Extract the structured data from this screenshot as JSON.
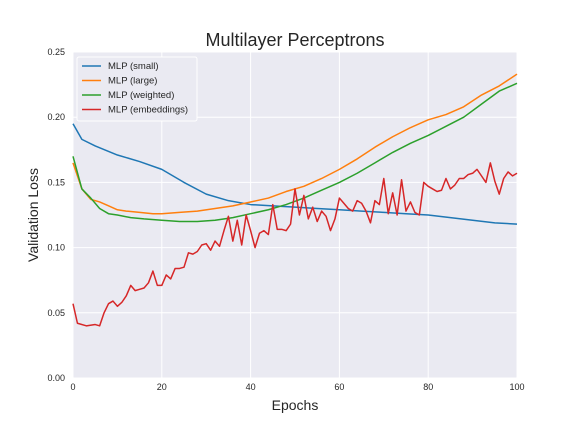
{
  "chart_data": {
    "type": "line",
    "title": "Multilayer Perceptrons",
    "xlabel": "Epochs",
    "ylabel": "Validation Loss",
    "xlim": [
      0,
      100
    ],
    "ylim": [
      0.0,
      0.25
    ],
    "xticks": [
      0,
      20,
      40,
      60,
      80,
      100
    ],
    "yticks": [
      0.0,
      0.05,
      0.1,
      0.15,
      0.2,
      0.25
    ],
    "xtick_labels": [
      "0",
      "20",
      "40",
      "60",
      "80",
      "100"
    ],
    "ytick_labels": [
      "0.00",
      "0.05",
      "0.10",
      "0.15",
      "0.20",
      "0.25"
    ],
    "grid": true,
    "legend_position": "top-left",
    "series": [
      {
        "name": "MLP (small)",
        "color": "#1f77b4",
        "points": [
          [
            0,
            0.195
          ],
          [
            2,
            0.183
          ],
          [
            5,
            0.178
          ],
          [
            10,
            0.171
          ],
          [
            15,
            0.166
          ],
          [
            20,
            0.16
          ],
          [
            25,
            0.15
          ],
          [
            30,
            0.141
          ],
          [
            35,
            0.136
          ],
          [
            40,
            0.133
          ],
          [
            45,
            0.132
          ],
          [
            50,
            0.131
          ],
          [
            55,
            0.13
          ],
          [
            60,
            0.129
          ],
          [
            65,
            0.128
          ],
          [
            70,
            0.127
          ],
          [
            75,
            0.126
          ],
          [
            80,
            0.125
          ],
          [
            85,
            0.123
          ],
          [
            90,
            0.121
          ],
          [
            95,
            0.119
          ],
          [
            100,
            0.118
          ]
        ]
      },
      {
        "name": "MLP (large)",
        "color": "#ff7f0e",
        "points": [
          [
            0,
            0.165
          ],
          [
            2,
            0.145
          ],
          [
            4,
            0.137
          ],
          [
            6,
            0.135
          ],
          [
            8,
            0.132
          ],
          [
            10,
            0.129
          ],
          [
            12,
            0.128
          ],
          [
            15,
            0.127
          ],
          [
            18,
            0.126
          ],
          [
            20,
            0.126
          ],
          [
            24,
            0.127
          ],
          [
            28,
            0.128
          ],
          [
            32,
            0.13
          ],
          [
            36,
            0.132
          ],
          [
            40,
            0.135
          ],
          [
            44,
            0.138
          ],
          [
            48,
            0.143
          ],
          [
            52,
            0.147
          ],
          [
            56,
            0.153
          ],
          [
            60,
            0.16
          ],
          [
            64,
            0.168
          ],
          [
            68,
            0.177
          ],
          [
            72,
            0.185
          ],
          [
            76,
            0.192
          ],
          [
            80,
            0.198
          ],
          [
            84,
            0.202
          ],
          [
            88,
            0.208
          ],
          [
            92,
            0.217
          ],
          [
            96,
            0.224
          ],
          [
            100,
            0.233
          ]
        ]
      },
      {
        "name": "MLP (weighted)",
        "color": "#2ca02c",
        "points": [
          [
            0,
            0.17
          ],
          [
            2,
            0.145
          ],
          [
            4,
            0.138
          ],
          [
            6,
            0.13
          ],
          [
            8,
            0.126
          ],
          [
            10,
            0.125
          ],
          [
            13,
            0.123
          ],
          [
            16,
            0.122
          ],
          [
            20,
            0.121
          ],
          [
            24,
            0.12
          ],
          [
            28,
            0.12
          ],
          [
            32,
            0.121
          ],
          [
            36,
            0.123
          ],
          [
            40,
            0.126
          ],
          [
            44,
            0.129
          ],
          [
            48,
            0.133
          ],
          [
            52,
            0.138
          ],
          [
            56,
            0.144
          ],
          [
            60,
            0.15
          ],
          [
            64,
            0.157
          ],
          [
            68,
            0.165
          ],
          [
            72,
            0.173
          ],
          [
            76,
            0.18
          ],
          [
            80,
            0.186
          ],
          [
            84,
            0.193
          ],
          [
            88,
            0.2
          ],
          [
            92,
            0.21
          ],
          [
            96,
            0.22
          ],
          [
            100,
            0.226
          ]
        ]
      },
      {
        "name": "MLP (embeddings)",
        "color": "#d62728",
        "points": [
          [
            0,
            0.057
          ],
          [
            1,
            0.042
          ],
          [
            3,
            0.04
          ],
          [
            5,
            0.041
          ],
          [
            6,
            0.04
          ],
          [
            7,
            0.05
          ],
          [
            8,
            0.057
          ],
          [
            9,
            0.059
          ],
          [
            10,
            0.055
          ],
          [
            11,
            0.058
          ],
          [
            12,
            0.063
          ],
          [
            13,
            0.071
          ],
          [
            14,
            0.067
          ],
          [
            15,
            0.068
          ],
          [
            16,
            0.069
          ],
          [
            17,
            0.073
          ],
          [
            18,
            0.082
          ],
          [
            19,
            0.071
          ],
          [
            20,
            0.071
          ],
          [
            21,
            0.079
          ],
          [
            22,
            0.076
          ],
          [
            23,
            0.084
          ],
          [
            24,
            0.084
          ],
          [
            25,
            0.085
          ],
          [
            26,
            0.096
          ],
          [
            27,
            0.095
          ],
          [
            28,
            0.097
          ],
          [
            29,
            0.102
          ],
          [
            30,
            0.103
          ],
          [
            31,
            0.098
          ],
          [
            32,
            0.105
          ],
          [
            33,
            0.101
          ],
          [
            34,
            0.113
          ],
          [
            35,
            0.124
          ],
          [
            36,
            0.105
          ],
          [
            37,
            0.121
          ],
          [
            38,
            0.102
          ],
          [
            39,
            0.125
          ],
          [
            40,
            0.113
          ],
          [
            41,
            0.1
          ],
          [
            42,
            0.111
          ],
          [
            43,
            0.113
          ],
          [
            44,
            0.11
          ],
          [
            45,
            0.133
          ],
          [
            46,
            0.114
          ],
          [
            47,
            0.114
          ],
          [
            48,
            0.113
          ],
          [
            49,
            0.118
          ],
          [
            50,
            0.145
          ],
          [
            51,
            0.125
          ],
          [
            52,
            0.14
          ],
          [
            53,
            0.122
          ],
          [
            54,
            0.131
          ],
          [
            55,
            0.12
          ],
          [
            56,
            0.128
          ],
          [
            57,
            0.124
          ],
          [
            58,
            0.113
          ],
          [
            59,
            0.122
          ],
          [
            60,
            0.138
          ],
          [
            61,
            0.134
          ],
          [
            62,
            0.13
          ],
          [
            63,
            0.128
          ],
          [
            64,
            0.136
          ],
          [
            65,
            0.134
          ],
          [
            66,
            0.128
          ],
          [
            67,
            0.119
          ],
          [
            68,
            0.136
          ],
          [
            69,
            0.133
          ],
          [
            70,
            0.153
          ],
          [
            71,
            0.126
          ],
          [
            72,
            0.142
          ],
          [
            73,
            0.125
          ],
          [
            74,
            0.152
          ],
          [
            75,
            0.128
          ],
          [
            76,
            0.135
          ],
          [
            77,
            0.127
          ],
          [
            78,
            0.125
          ],
          [
            79,
            0.15
          ],
          [
            80,
            0.147
          ],
          [
            81,
            0.145
          ],
          [
            82,
            0.143
          ],
          [
            83,
            0.144
          ],
          [
            84,
            0.153
          ],
          [
            85,
            0.145
          ],
          [
            86,
            0.148
          ],
          [
            87,
            0.153
          ],
          [
            88,
            0.153
          ],
          [
            89,
            0.156
          ],
          [
            90,
            0.157
          ],
          [
            91,
            0.16
          ],
          [
            92,
            0.155
          ],
          [
            93,
            0.15
          ],
          [
            94,
            0.165
          ],
          [
            95,
            0.151
          ],
          [
            96,
            0.141
          ],
          [
            97,
            0.153
          ],
          [
            98,
            0.158
          ],
          [
            99,
            0.155
          ],
          [
            100,
            0.157
          ]
        ]
      }
    ]
  }
}
